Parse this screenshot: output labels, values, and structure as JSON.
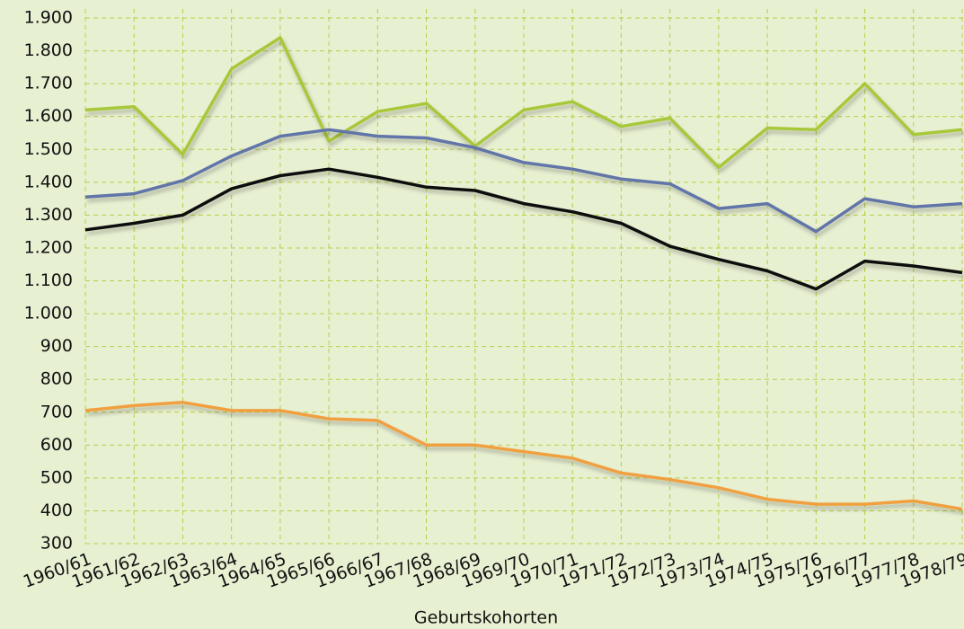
{
  "chart_data": {
    "type": "line",
    "x_label": "Geburtskohorten",
    "categories": [
      "1960/61",
      "1961/62",
      "1962/63",
      "1963/64",
      "1964/65",
      "1965/66",
      "1966/67",
      "1967/68",
      "1968/69",
      "1969/70",
      "1970/71",
      "1971/72",
      "1972/73",
      "1973/74",
      "1974/75",
      "1975/76",
      "1976/77",
      "1977/78",
      "1978/79"
    ],
    "series": [
      {
        "color": "#a8c83a",
        "values": [
          1620,
          1630,
          1485,
          1745,
          1840,
          1525,
          1615,
          1640,
          1510,
          1620,
          1645,
          1570,
          1595,
          1445,
          1565,
          1560,
          1700,
          1545,
          1560
        ]
      },
      {
        "color": "#6274a8",
        "values": [
          1355,
          1365,
          1405,
          1480,
          1540,
          1560,
          1540,
          1535,
          1505,
          1460,
          1440,
          1410,
          1395,
          1320,
          1335,
          1250,
          1350,
          1325,
          1335
        ]
      },
      {
        "color": "#111111",
        "values": [
          1255,
          1275,
          1300,
          1380,
          1420,
          1440,
          1415,
          1385,
          1375,
          1335,
          1310,
          1275,
          1205,
          1165,
          1130,
          1075,
          1160,
          1145,
          1125
        ]
      },
      {
        "color": "#f0a040",
        "values": [
          705,
          720,
          730,
          705,
          705,
          680,
          675,
          600,
          600,
          580,
          560,
          515,
          495,
          470,
          435,
          420,
          420,
          430,
          405
        ]
      }
    ],
    "ylim": [
      300,
      1900
    ],
    "yticks": [
      300,
      400,
      500,
      600,
      700,
      800,
      900,
      {
        "value": 1000,
        "label": "1.000"
      },
      {
        "value": 1100,
        "label": "1.100"
      },
      {
        "value": 1200,
        "label": "1.200"
      },
      {
        "value": 1300,
        "label": "1.300"
      },
      {
        "value": 1400,
        "label": "1.400"
      },
      {
        "value": 1500,
        "label": "1.500"
      },
      {
        "value": 1600,
        "label": "1.600"
      },
      {
        "value": 1700,
        "label": "1.700"
      },
      {
        "value": 1800,
        "label": "1.800"
      },
      {
        "value": 1900,
        "label": "1.900"
      }
    ],
    "grid": true
  }
}
